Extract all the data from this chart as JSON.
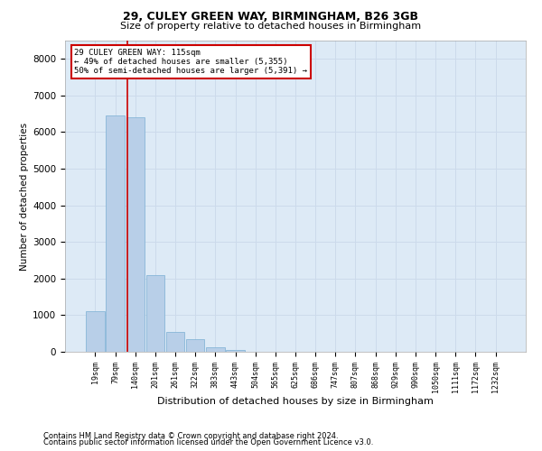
{
  "title1": "29, CULEY GREEN WAY, BIRMINGHAM, B26 3GB",
  "title2": "Size of property relative to detached houses in Birmingham",
  "xlabel": "Distribution of detached houses by size in Birmingham",
  "ylabel": "Number of detached properties",
  "footnote1": "Contains HM Land Registry data © Crown copyright and database right 2024.",
  "footnote2": "Contains public sector information licensed under the Open Government Licence v3.0.",
  "annotation_line1": "29 CULEY GREEN WAY: 115sqm",
  "annotation_line2": "← 49% of detached houses are smaller (5,355)",
  "annotation_line3": "50% of semi-detached houses are larger (5,391) →",
  "bar_color": "#b8cfe8",
  "bar_edge_color": "#7aafd4",
  "grid_color": "#ccdaeb",
  "bg_color": "#ddeaf6",
  "vline_color": "#cc0000",
  "annotation_box_edge": "#cc0000",
  "annotation_box_face": "#ffffff",
  "ylim": [
    0,
    8500
  ],
  "yticks": [
    0,
    1000,
    2000,
    3000,
    4000,
    5000,
    6000,
    7000,
    8000
  ],
  "bin_labels": [
    "19sqm",
    "79sqm",
    "140sqm",
    "201sqm",
    "261sqm",
    "322sqm",
    "383sqm",
    "443sqm",
    "504sqm",
    "565sqm",
    "625sqm",
    "686sqm",
    "747sqm",
    "807sqm",
    "868sqm",
    "929sqm",
    "990sqm",
    "1050sqm",
    "1111sqm",
    "1172sqm",
    "1232sqm"
  ],
  "bin_values": [
    1100,
    6450,
    6400,
    2100,
    550,
    350,
    130,
    50,
    10,
    5,
    2,
    1,
    1,
    0,
    0,
    0,
    0,
    0,
    0,
    0,
    0
  ],
  "vline_x": 1.59,
  "background_color": "#ffffff",
  "title1_fontsize": 9,
  "title2_fontsize": 8,
  "xlabel_fontsize": 8,
  "ylabel_fontsize": 7.5,
  "ytick_fontsize": 7.5,
  "xtick_fontsize": 6,
  "annotation_fontsize": 6.5,
  "footnote_fontsize": 6
}
